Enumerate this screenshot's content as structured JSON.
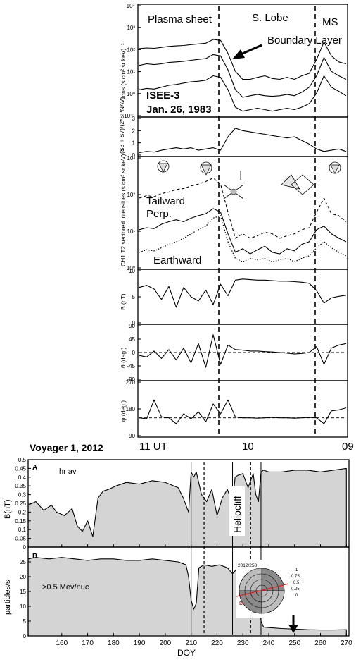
{
  "chart_data": [
    {
      "type": "line",
      "title": "ISEE-3 Jan. 26, 1983",
      "spacecraft_label": "ISEE-3",
      "date_label": "Jan. 26, 1983",
      "region_labels": {
        "plasma_sheet": "Plasma sheet",
        "south_lobe": "S. Lobe",
        "magnetosheath": "MS",
        "boundary_layer": "Boundary Layer"
      },
      "x_tick_labels": [
        "11 UT",
        "10",
        "09"
      ],
      "panels": [
        {
          "id": "ions",
          "ylabel": "Ions (s cm² sr keV)⁻¹",
          "yscale": "log",
          "ylim": [
            0.03,
            10000
          ],
          "tick_labels": [
            "10⁴",
            "10³",
            "10²",
            "10¹",
            "10⁰",
            "10⁻¹"
          ],
          "series": [
            {
              "name": "",
              "values": [
                70,
                75,
                72,
                80,
                90,
                95,
                100,
                110,
                120,
                130,
                200,
                180,
                40,
                5,
                2,
                2,
                2.5,
                3,
                2.2,
                2,
                2.5,
                2,
                3,
                4,
                20,
                150,
                30,
                15,
                12
              ]
            },
            {
              "name": "",
              "values": [
                10,
                12,
                11,
                12,
                14,
                15,
                16,
                18,
                20,
                22,
                35,
                30,
                6,
                0.6,
                0.25,
                0.3,
                0.35,
                0.3,
                0.28,
                0.3,
                0.35,
                0.3,
                0.45,
                0.8,
                3,
                25,
                5,
                3,
                2
              ]
            },
            {
              "name": "",
              "values": [
                0.6,
                0.7,
                0.65,
                0.8,
                1,
                1.1,
                1.3,
                1.5,
                1.6,
                1.8,
                3,
                2.5,
                0.6,
                0.08,
                0.05,
                0.06,
                0.07,
                0.06,
                0.05,
                0.06,
                0.07,
                0.06,
                0.08,
                0.12,
                0.4,
                3,
                0.8,
                0.5,
                0.3
              ]
            }
          ]
        },
        {
          "id": "ratio",
          "ylabel": "(S3 + S7)/(2*SPNAV)",
          "ylim": [
            0,
            3
          ],
          "tick_labels": [
            "3",
            "2",
            "1",
            "0"
          ],
          "series": [
            {
              "name": "",
              "values": [
                0.2,
                0.3,
                0.25,
                0.4,
                0.5,
                0.6,
                0.5,
                0.6,
                0.4,
                0.5,
                0.6,
                0.4,
                1.5,
                2.2,
                2.0,
                1.9,
                1.8,
                1.7,
                1.6,
                1.5,
                1.4,
                1.5,
                1.2,
                0.9,
                0.5,
                0.3,
                0.4,
                0.5,
                0.3
              ]
            }
          ]
        },
        {
          "id": "sectored",
          "ylabel": "CH1 T2 sectored intensities (s cm² sr keV)⁻¹",
          "yscale": "log",
          "ylim": [
            0.1,
            30000
          ],
          "tick_labels": [
            "10³",
            "10²",
            "10¹",
            "10⁰"
          ],
          "annotations": {
            "tailward": "Tailward",
            "perp": "Perp.",
            "earthward": "Earthward"
          },
          "series": [
            {
              "name": "Tailward",
              "values": [
                300,
                400,
                350,
                500,
                600,
                800,
                900,
                1200,
                1500,
                2000,
                3000,
                1500,
                60,
                3,
                5,
                3,
                4,
                6,
                5,
                3,
                4,
                5,
                8,
                10,
                60,
                300,
                50,
                40,
                20
              ]
            },
            {
              "name": "Perp.",
              "values": [
                8,
                10,
                9,
                15,
                20,
                25,
                20,
                30,
                40,
                50,
                90,
                60,
                5,
                0.6,
                0.9,
                0.5,
                0.8,
                1.2,
                0.6,
                0.5,
                0.9,
                0.7,
                1.5,
                2,
                8,
                12,
                5,
                3,
                2
              ]
            },
            {
              "name": "Earthward",
              "values": [
                0.6,
                0.8,
                0.7,
                1,
                1.5,
                2,
                3,
                5,
                8,
                12,
                30,
                40,
                2,
                0.3,
                0.2,
                0.3,
                0.25,
                0.3,
                0.2,
                0.25,
                0.3,
                0.2,
                0.3,
                0.4,
                1,
                2,
                1,
                0.6,
                0.4
              ]
            }
          ]
        },
        {
          "id": "B",
          "ylabel": "B (nT)",
          "ylim": [
            0,
            10
          ],
          "tick_labels": [
            "10",
            "5",
            "0"
          ],
          "series": [
            {
              "name": "",
              "values": [
                6.8,
                7.2,
                6.5,
                4.5,
                7,
                3,
                6.8,
                5,
                4.2,
                6.3,
                3.5,
                7.4,
                5.2,
                8.2,
                8.4,
                8.3,
                8.2,
                8.2,
                8.1,
                8.0,
                8.0,
                7.9,
                7.8,
                7.6,
                6.2,
                3.8,
                4.8,
                5.1,
                5.3
              ]
            }
          ]
        },
        {
          "id": "theta",
          "ylabel": "θ (deg.)",
          "ylim": [
            -90,
            90
          ],
          "tick_labels": [
            "90",
            "45",
            "0",
            "-45",
            "-90"
          ],
          "series": [
            {
              "name": "",
              "values": [
                -10,
                -15,
                5,
                -20,
                10,
                -25,
                15,
                -35,
                30,
                -50,
                60,
                -40,
                25,
                10,
                8,
                5,
                5,
                3,
                2,
                0,
                -2,
                -5,
                -3,
                0,
                20,
                -40,
                15,
                25,
                30
              ]
            }
          ]
        },
        {
          "id": "phi",
          "ylabel": "φ (deg.)",
          "ylim": [
            90,
            360
          ],
          "tick_labels": [
            "270",
            "180",
            "90"
          ],
          "series": [
            {
              "name": "",
              "values": [
                180,
                175,
                270,
                185,
                180,
                150,
                200,
                175,
                210,
                160,
                250,
                200,
                270,
                185,
                180,
                180,
                178,
                180,
                182,
                180,
                180,
                178,
                180,
                182,
                180,
                150,
                215,
                220,
                230
              ]
            }
          ]
        }
      ]
    },
    {
      "type": "area",
      "title": "Voyager 1, 2012",
      "xlabel": "DOY",
      "xlim": [
        147,
        271
      ],
      "x_ticks": [
        160,
        170,
        180,
        190,
        200,
        210,
        220,
        230,
        240,
        250,
        260,
        270
      ],
      "vertical_lines": {
        "solid": [
          210,
          226,
          237
        ],
        "dashed": [
          215,
          233
        ]
      },
      "panels": [
        {
          "id": "A",
          "letter": "A",
          "annotation": "hr av",
          "ylabel": "B(nT)",
          "ylim": [
            0,
            0.5
          ],
          "y_ticks": [
            0,
            0.05,
            0.1,
            0.15,
            0.2,
            0.25,
            0.3,
            0.35,
            0.4,
            0.45,
            0.5
          ],
          "side_label": "Heliocliff",
          "x": [
            147,
            150,
            153,
            156,
            158,
            161,
            164,
            166,
            168,
            170,
            172,
            174,
            176,
            178,
            181,
            185,
            190,
            195,
            200,
            205,
            207,
            209,
            210,
            211,
            212,
            214,
            216,
            218,
            220,
            222,
            224,
            226,
            227,
            228,
            230,
            232,
            234,
            235,
            236,
            237,
            238,
            240,
            245,
            250,
            255,
            260,
            265,
            270
          ],
          "values": [
            0.24,
            0.26,
            0.21,
            0.24,
            0.2,
            0.18,
            0.22,
            0.12,
            0.09,
            0.15,
            0.06,
            0.28,
            0.32,
            0.33,
            0.35,
            0.37,
            0.36,
            0.38,
            0.37,
            0.34,
            0.28,
            0.2,
            0.43,
            0.4,
            0.43,
            0.3,
            0.26,
            0.33,
            0.18,
            0.28,
            0.33,
            0.25,
            0.4,
            0.41,
            0.42,
            0.34,
            0.42,
            0.3,
            0.26,
            0.43,
            0.44,
            0.43,
            0.43,
            0.44,
            0.44,
            0.43,
            0.44,
            0.45
          ]
        },
        {
          "id": "B",
          "letter": "B",
          "annotation": ">0.5 Mev/nuc",
          "ylabel": "particles/s",
          "ylim": [
            0,
            30
          ],
          "y_ticks": [
            0,
            5,
            10,
            15,
            20,
            25,
            30
          ],
          "inset": {
            "label": "2012/258",
            "scale_labels": [
              "1",
              "0.75",
              "0.5",
              "0.25",
              "0"
            ],
            "marker": "B"
          },
          "x": [
            147,
            150,
            155,
            160,
            165,
            170,
            175,
            180,
            185,
            190,
            195,
            200,
            205,
            208,
            209,
            210,
            211,
            212,
            213,
            215,
            218,
            221,
            224,
            226,
            227,
            228,
            230,
            232,
            233,
            234,
            235,
            236,
            237,
            238,
            240,
            245,
            250,
            255,
            260,
            265,
            270
          ],
          "values": [
            26,
            26.5,
            26,
            26.5,
            26,
            25.5,
            26,
            26,
            25.5,
            25.5,
            26,
            25.5,
            25,
            24,
            20,
            12,
            9,
            11,
            23,
            24,
            23.5,
            24,
            23,
            21,
            22,
            23,
            24,
            17,
            11,
            18,
            24,
            22,
            5,
            3,
            2.8,
            2.5,
            2.3,
            2.1,
            2.0,
            2.0,
            2.1
          ]
        }
      ]
    }
  ]
}
